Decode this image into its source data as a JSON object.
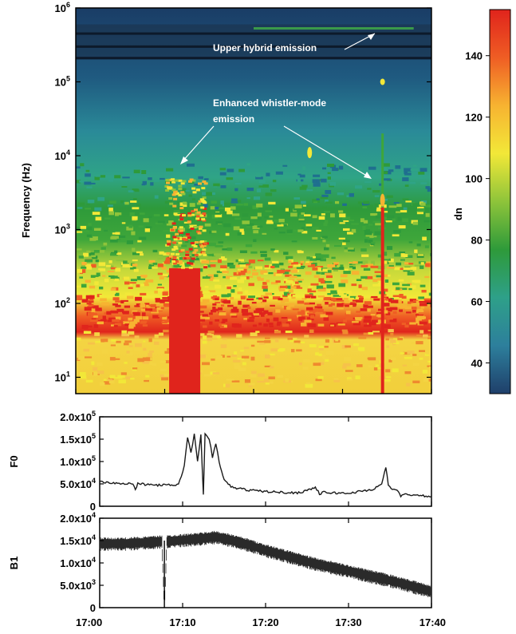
{
  "chart_data": [
    {
      "type": "heatmap",
      "title": "",
      "xlabel": "",
      "ylabel": "Frequency (Hz)",
      "yscale": "log",
      "ylim": [
        6,
        1000000
      ],
      "xlim": [
        "17:00",
        "17:40"
      ],
      "y_ticks": [
        {
          "mant": "10",
          "exp": "1",
          "value": 10
        },
        {
          "mant": "10",
          "exp": "2",
          "value": 100
        },
        {
          "mant": "10",
          "exp": "3",
          "value": 1000
        },
        {
          "mant": "10",
          "exp": "4",
          "value": 10000
        },
        {
          "mant": "10",
          "exp": "5",
          "value": 100000
        },
        {
          "mant": "10",
          "exp": "6",
          "value": 1000000
        }
      ],
      "colorbar": {
        "label": "dn",
        "range": [
          30,
          155
        ],
        "ticks": [
          "40",
          "60",
          "80",
          "100",
          "120",
          "140"
        ],
        "colors": [
          "#1f3f6a",
          "#2d7f9c",
          "#2ea089",
          "#2e9a3a",
          "#8ec43a",
          "#f2e838",
          "#f7b331",
          "#ef5d24",
          "#e0241c"
        ]
      },
      "annotations": [
        {
          "text": "Upper hybrid emission"
        },
        {
          "text": "Enhanced whistler-mode"
        },
        {
          "text": "emission"
        }
      ],
      "features": [
        {
          "name": "broadband burst",
          "time_start": "17:10.5",
          "time_end": "17:14",
          "freq_top_hz": 5000
        },
        {
          "name": "narrow spike",
          "time": "17:34.5",
          "freq_top_hz": 100000
        },
        {
          "name": "spot",
          "time": "17:26.3",
          "freq_hz": 11000
        },
        {
          "name": "upper hybrid band",
          "freq_low_hz": 200000,
          "freq_high_hz": 600000
        }
      ]
    },
    {
      "type": "line",
      "ylabel": "F0",
      "ylim": [
        0,
        200000
      ],
      "y_ticks": [
        {
          "mant": "0",
          "exp": "",
          "value": 0
        },
        {
          "mant": "5.0x10",
          "exp": "4",
          "value": 50000
        },
        {
          "mant": "1.0x10",
          "exp": "5",
          "value": 100000
        },
        {
          "mant": "1.5x10",
          "exp": "5",
          "value": 150000
        },
        {
          "mant": "2.0x10",
          "exp": "5",
          "value": 200000
        }
      ],
      "x_minutes": [
        0,
        2,
        4,
        4.3,
        4.6,
        6,
        8,
        9.5,
        10.2,
        10.6,
        11,
        11.4,
        11.8,
        12.2,
        12.5,
        12.7,
        13.2,
        13.6,
        14,
        14.4,
        15,
        16,
        18,
        20,
        22,
        24,
        26,
        26.5,
        27,
        28,
        30,
        32,
        33,
        34,
        34.5,
        34.8,
        35.3,
        36,
        36.3,
        37,
        38,
        40
      ],
      "values": [
        55000,
        52000,
        50000,
        38000,
        50000,
        48000,
        47000,
        48000,
        90000,
        155000,
        120000,
        160000,
        100000,
        162000,
        25000,
        160000,
        150000,
        110000,
        140000,
        100000,
        58000,
        42000,
        36000,
        33000,
        31000,
        30000,
        42000,
        28000,
        31000,
        30000,
        29000,
        35000,
        38000,
        50000,
        88000,
        45000,
        40000,
        32000,
        22000,
        28000,
        24000,
        22000
      ]
    },
    {
      "type": "line",
      "ylabel": "B1",
      "ylim": [
        0,
        20000
      ],
      "y_ticks": [
        {
          "mant": "0",
          "exp": "",
          "value": 0
        },
        {
          "mant": "5.0x10",
          "exp": "3",
          "value": 5000
        },
        {
          "mant": "1.0x10",
          "exp": "4",
          "value": 10000
        },
        {
          "mant": "1.5x10",
          "exp": "4",
          "value": 15000
        },
        {
          "mant": "2.0x10",
          "exp": "4",
          "value": 20000
        }
      ],
      "x_minutes": [
        0,
        3,
        6,
        7.5,
        7.8,
        8.1,
        10,
        12,
        14,
        16,
        18,
        20,
        22,
        24,
        26,
        28,
        30,
        32,
        34,
        36,
        38,
        40
      ],
      "values": [
        14500,
        14500,
        14800,
        15000,
        0,
        15000,
        15300,
        15600,
        16000,
        15200,
        14200,
        13000,
        12000,
        11000,
        10000,
        9200,
        8400,
        7500,
        6700,
        5800,
        4800,
        3800
      ],
      "xlabel": "",
      "x_ticks": [
        "17:00",
        "17:10",
        "17:20",
        "17:30",
        "17:40"
      ]
    }
  ]
}
